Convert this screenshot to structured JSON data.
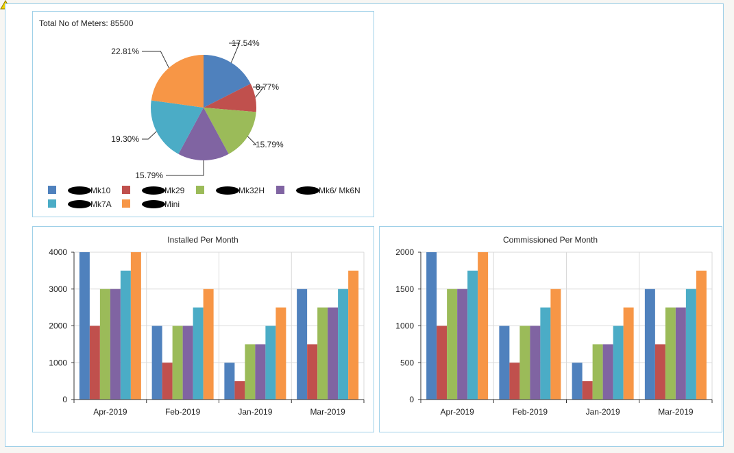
{
  "icons": {
    "warning": "warning-icon"
  },
  "chart_data": [
    {
      "type": "pie",
      "title": "Total No of Meters: 85500",
      "legend_placement": "bottom",
      "series": [
        {
          "name": "Mk10",
          "value": 17.54,
          "label": "17.54%",
          "color": "#4f81bd"
        },
        {
          "name": "Mk29",
          "value": 8.77,
          "label": "8.77%",
          "color": "#c0504d"
        },
        {
          "name": "Mk32H",
          "value": 15.79,
          "label": "15.79%",
          "color": "#9bbb59"
        },
        {
          "name": "Mk6/ Mk6N",
          "value": 15.79,
          "label": "15.79%",
          "color": "#8064a2"
        },
        {
          "name": "Mk7A",
          "value": 19.3,
          "label": "19.30%",
          "color": "#4bacc6"
        },
        {
          "name": "Mini",
          "value": 22.81,
          "label": "22.81%",
          "color": "#f79646"
        }
      ]
    },
    {
      "type": "bar",
      "title": "Installed Per Month",
      "categories": [
        "Apr-2019",
        "Feb-2019",
        "Jan-2019",
        "Mar-2019"
      ],
      "ylim": [
        0,
        4000
      ],
      "yticks": [
        "0",
        "1000",
        "2000",
        "3000",
        "4000"
      ],
      "grid": true,
      "colors": [
        "#4f81bd",
        "#c0504d",
        "#9bbb59",
        "#8064a2",
        "#4bacc6",
        "#f79646"
      ],
      "series": [
        {
          "values": [
            4000,
            2000,
            1000,
            3000
          ]
        },
        {
          "values": [
            2000,
            1000,
            500,
            1500
          ]
        },
        {
          "values": [
            3000,
            2000,
            1500,
            2500
          ]
        },
        {
          "values": [
            3000,
            2000,
            1500,
            2500
          ]
        },
        {
          "values": [
            3500,
            2500,
            2000,
            3000
          ]
        },
        {
          "values": [
            4000,
            3000,
            2500,
            3500
          ]
        }
      ]
    },
    {
      "type": "bar",
      "title": "Commissioned Per Month",
      "categories": [
        "Apr-2019",
        "Feb-2019",
        "Jan-2019",
        "Mar-2019"
      ],
      "ylim": [
        0,
        2000
      ],
      "yticks": [
        "0",
        "500",
        "1000",
        "1500",
        "2000"
      ],
      "grid": true,
      "colors": [
        "#4f81bd",
        "#c0504d",
        "#9bbb59",
        "#8064a2",
        "#4bacc6",
        "#f79646"
      ],
      "series": [
        {
          "values": [
            2000,
            1000,
            500,
            1500
          ]
        },
        {
          "values": [
            1000,
            500,
            250,
            750
          ]
        },
        {
          "values": [
            1500,
            1000,
            750,
            1250
          ]
        },
        {
          "values": [
            1500,
            1000,
            750,
            1250
          ]
        },
        {
          "values": [
            1750,
            1250,
            1000,
            1500
          ]
        },
        {
          "values": [
            2000,
            1500,
            1250,
            1750
          ]
        }
      ]
    }
  ]
}
